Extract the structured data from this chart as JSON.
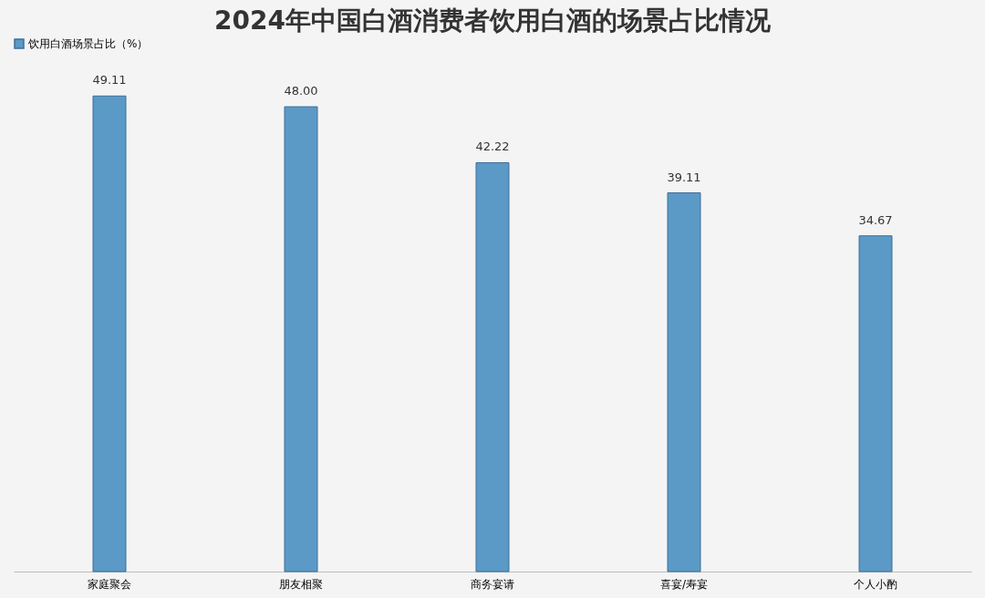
{
  "chart_data": {
    "type": "bar",
    "title": "2024年中国白酒消费者饮用白酒的场景占比情况",
    "categories": [
      "家庭聚会",
      "朋友相聚",
      "商务宴请",
      "喜宴/寿宴",
      "个人小酌"
    ],
    "series": [
      {
        "name": "饮用白酒场景占比（%）",
        "color": "#5b9ac6",
        "values": [
          49.11,
          48.0,
          42.22,
          39.11,
          34.67
        ],
        "value_labels": [
          "49.11",
          "48.00",
          "42.22",
          "39.11",
          "34.67"
        ]
      }
    ],
    "legend": "top",
    "grid": false,
    "tick_labels": "x"
  }
}
